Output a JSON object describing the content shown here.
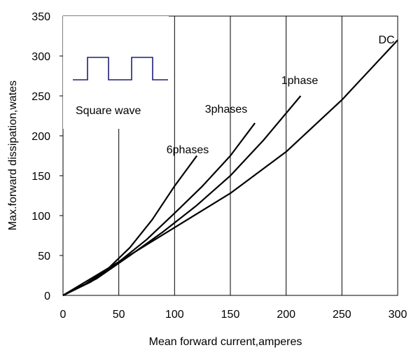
{
  "chart_data": {
    "type": "line",
    "title": "",
    "xlabel": "Mean forward  current,amperes",
    "ylabel": "Max.forward  dissipation,wates",
    "xlim": [
      0,
      300
    ],
    "ylim": [
      0,
      350
    ],
    "x_ticks": [
      "0",
      "50",
      "100",
      "150",
      "200",
      "250",
      "300"
    ],
    "y_ticks": [
      "0",
      "50",
      "100",
      "150",
      "200",
      "250",
      "300",
      "350"
    ],
    "grid": "vertical",
    "legend": "none",
    "inset_label": "Square wave",
    "series": [
      {
        "name": "6phases",
        "color": "#000000",
        "points": [
          [
            0,
            0
          ],
          [
            20,
            14
          ],
          [
            40,
            33
          ],
          [
            60,
            60
          ],
          [
            80,
            95
          ],
          [
            100,
            137
          ],
          [
            120,
            175
          ]
        ]
      },
      {
        "name": "3phases",
        "color": "#000000",
        "points": [
          [
            0,
            0
          ],
          [
            25,
            17
          ],
          [
            50,
            42
          ],
          [
            75,
            70
          ],
          [
            100,
            103
          ],
          [
            125,
            137
          ],
          [
            150,
            175
          ],
          [
            172,
            216
          ]
        ]
      },
      {
        "name": "1phase",
        "color": "#000000",
        "points": [
          [
            0,
            0
          ],
          [
            30,
            21
          ],
          [
            60,
            50
          ],
          [
            90,
            80
          ],
          [
            120,
            113
          ],
          [
            150,
            150
          ],
          [
            180,
            195
          ],
          [
            213,
            250
          ]
        ]
      },
      {
        "name": "DC",
        "color": "#000000",
        "points": [
          [
            0,
            0
          ],
          [
            50,
            42
          ],
          [
            100,
            85
          ],
          [
            150,
            128
          ],
          [
            200,
            180
          ],
          [
            250,
            245
          ],
          [
            300,
            320
          ]
        ]
      }
    ]
  }
}
